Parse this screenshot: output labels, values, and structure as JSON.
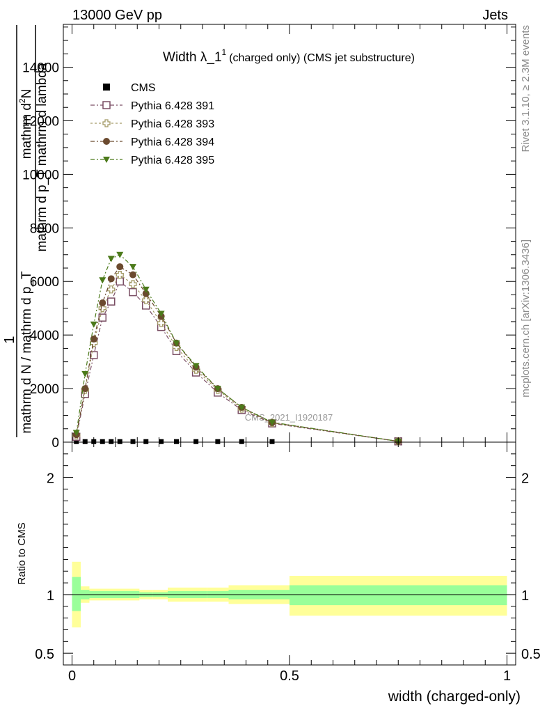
{
  "header": {
    "left": "13000 GeV pp",
    "right": "Jets",
    "side_rivet": "Rivet 3.1.10, ≥ 2.3M events",
    "side_mcplots": "mcplots.cern.ch [arXiv:1306.3436]",
    "watermark": "CMS_2021_I1920187"
  },
  "colors": {
    "cms": "#000000",
    "p391": "#7a4e64",
    "p393": "#a39a66",
    "p394": "#6b4a2f",
    "p395": "#4c7a1a",
    "band_green": "#99ff99",
    "band_yellow": "#ffff99"
  },
  "chart_data": [
    {
      "type": "line",
      "title_main": "Width λ_1",
      "title_sup": "1",
      "title_rest": "(charged only) (CMS jet substructure)",
      "ylabel_top": "mathrm d",
      "ylabel_sup": "2",
      "ylabel_N": "N",
      "ylabel_den": "mathrm d p_T mathrm d lambda",
      "ylabel_one": "1",
      "ylabel_bottom": "mathrm d N / mathrm d p_T",
      "ylim": [
        0,
        15600
      ],
      "xlim": [
        -0.02,
        1.02
      ],
      "yticks": [
        0,
        2000,
        4000,
        6000,
        8000,
        10000,
        12000,
        14000
      ],
      "ytick_labels": [
        "0",
        "2000",
        "4000",
        "6000",
        "8000",
        "10000",
        "12000",
        "14000"
      ],
      "x": [
        0.01,
        0.03,
        0.05,
        0.07,
        0.09,
        0.11,
        0.14,
        0.17,
        0.205,
        0.24,
        0.285,
        0.335,
        0.39,
        0.46,
        0.75
      ],
      "series": [
        {
          "name": "CMS",
          "marker": "square",
          "values": [
            20,
            20,
            20,
            20,
            20,
            20,
            20,
            20,
            20,
            20,
            20,
            20,
            20,
            20,
            null
          ]
        },
        {
          "name": "Pythia 6.428 391",
          "marker": "open-square",
          "values": [
            200,
            1800,
            3250,
            4650,
            5250,
            6000,
            5600,
            5100,
            4300,
            3400,
            2600,
            1850,
            1200,
            700,
            30
          ]
        },
        {
          "name": "Pythia 6.428 393",
          "marker": "open-cross",
          "values": [
            250,
            1950,
            3700,
            5000,
            5700,
            6250,
            5900,
            5300,
            4450,
            3550,
            2700,
            1950,
            1250,
            720,
            30
          ]
        },
        {
          "name": "Pythia 6.428 394",
          "marker": "circle",
          "values": [
            280,
            2000,
            3850,
            5200,
            6100,
            6550,
            6250,
            5550,
            4700,
            3700,
            2800,
            2000,
            1300,
            730,
            30
          ]
        },
        {
          "name": "Pythia 6.428 395",
          "marker": "triangle-down",
          "values": [
            350,
            2550,
            4400,
            6050,
            6850,
            7000,
            6550,
            5700,
            4800,
            3700,
            2850,
            2000,
            1300,
            740,
            30
          ]
        }
      ]
    },
    {
      "type": "area",
      "ylabel": "Ratio to CMS",
      "ylim": [
        0.4,
        2.3
      ],
      "xlim": [
        -0.02,
        1.02
      ],
      "yticks": [
        0.5,
        1,
        2
      ],
      "ytick_labels": [
        "0.5",
        "1",
        "2"
      ],
      "xticks": [
        0,
        0.5,
        1
      ],
      "xtick_labels": [
        "0",
        "0.5",
        "1"
      ],
      "xlabel": "width (charged-only)",
      "bins": [
        {
          "x0": 0.0,
          "x1": 0.02,
          "green": [
            0.86,
            1.15
          ],
          "yellow": [
            0.72,
            1.28
          ]
        },
        {
          "x0": 0.02,
          "x1": 0.04,
          "green": [
            0.96,
            1.04
          ],
          "yellow": [
            0.93,
            1.07
          ]
        },
        {
          "x0": 0.04,
          "x1": 0.06,
          "green": [
            0.97,
            1.03
          ],
          "yellow": [
            0.95,
            1.05
          ]
        },
        {
          "x0": 0.06,
          "x1": 0.08,
          "green": [
            0.97,
            1.03
          ],
          "yellow": [
            0.95,
            1.05
          ]
        },
        {
          "x0": 0.08,
          "x1": 0.1,
          "green": [
            0.97,
            1.03
          ],
          "yellow": [
            0.95,
            1.05
          ]
        },
        {
          "x0": 0.1,
          "x1": 0.12,
          "green": [
            0.97,
            1.03
          ],
          "yellow": [
            0.95,
            1.05
          ]
        },
        {
          "x0": 0.12,
          "x1": 0.155,
          "green": [
            0.97,
            1.03
          ],
          "yellow": [
            0.95,
            1.05
          ]
        },
        {
          "x0": 0.155,
          "x1": 0.185,
          "green": [
            0.98,
            1.02
          ],
          "yellow": [
            0.96,
            1.04
          ]
        },
        {
          "x0": 0.185,
          "x1": 0.22,
          "green": [
            0.98,
            1.02
          ],
          "yellow": [
            0.96,
            1.04
          ]
        },
        {
          "x0": 0.22,
          "x1": 0.26,
          "green": [
            0.97,
            1.03
          ],
          "yellow": [
            0.94,
            1.06
          ]
        },
        {
          "x0": 0.26,
          "x1": 0.31,
          "green": [
            0.97,
            1.03
          ],
          "yellow": [
            0.94,
            1.06
          ]
        },
        {
          "x0": 0.31,
          "x1": 0.36,
          "green": [
            0.97,
            1.03
          ],
          "yellow": [
            0.94,
            1.06
          ]
        },
        {
          "x0": 0.36,
          "x1": 0.42,
          "green": [
            0.96,
            1.04
          ],
          "yellow": [
            0.92,
            1.08
          ]
        },
        {
          "x0": 0.42,
          "x1": 0.5,
          "green": [
            0.96,
            1.04
          ],
          "yellow": [
            0.92,
            1.08
          ]
        },
        {
          "x0": 0.5,
          "x1": 1.0,
          "green": [
            0.91,
            1.08
          ],
          "yellow": [
            0.82,
            1.16
          ]
        }
      ],
      "reference_line": 1
    }
  ]
}
